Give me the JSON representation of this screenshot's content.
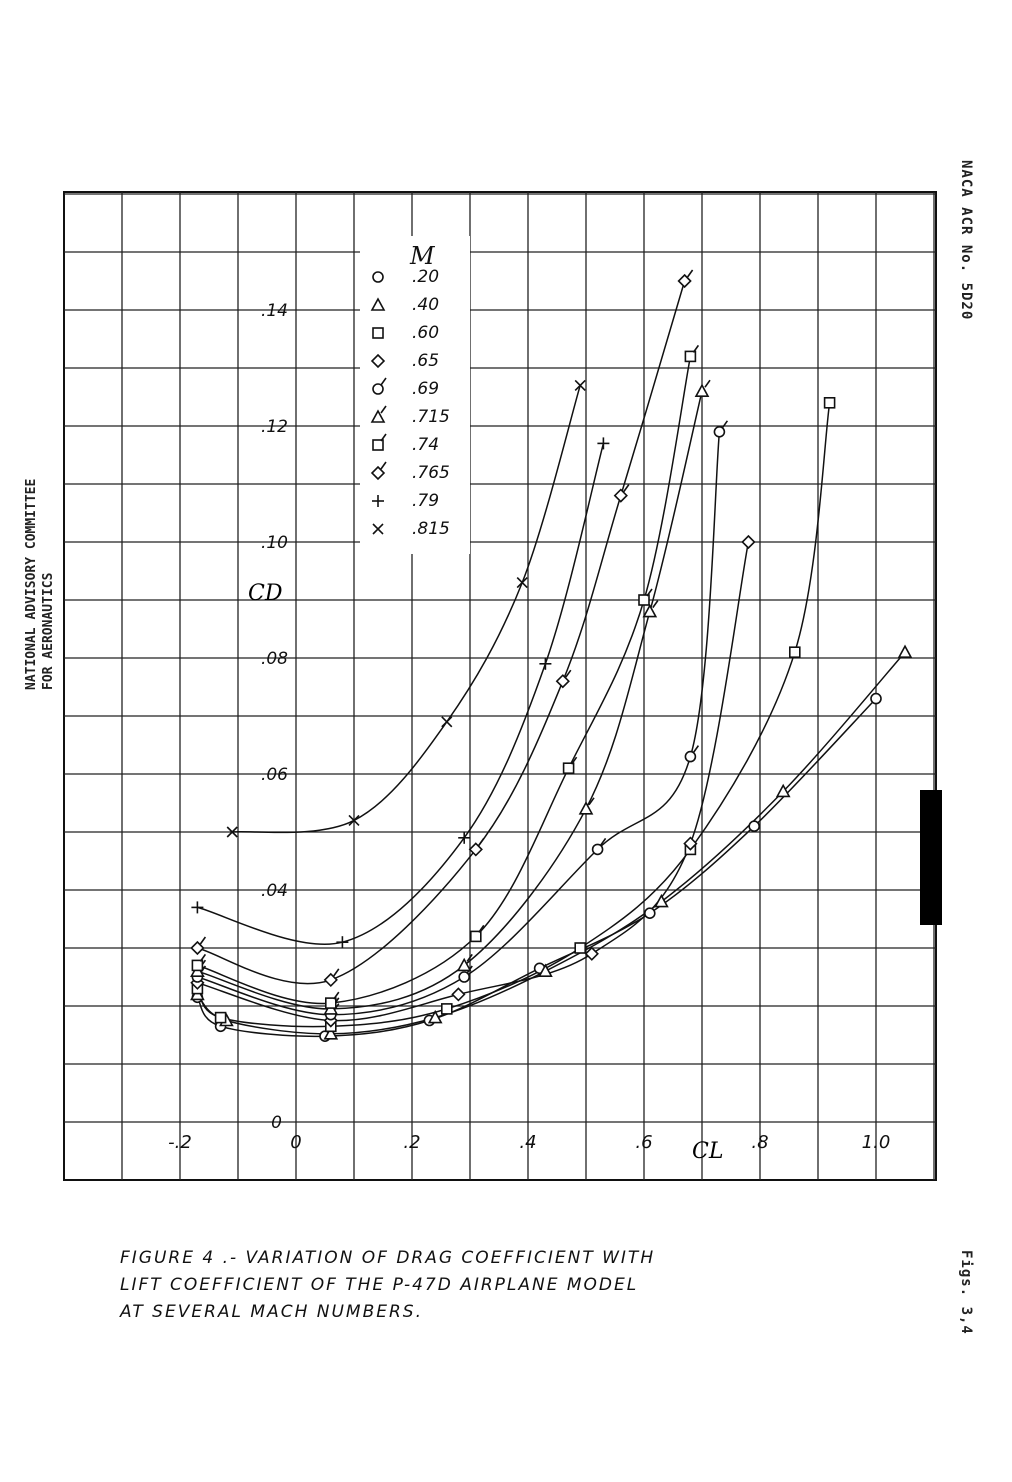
{
  "side_labels": {
    "right_top": "NACA ACR No. 5D20",
    "right_bottom": "Figs. 3,4",
    "left_line1": "NATIONAL ADVISORY COMMITTEE",
    "left_line2": "FOR AERONAUTICS"
  },
  "caption": {
    "line1": "FIGURE 4 .- VARIATION OF DRAG COEFFICIENT WITH",
    "line2": "LIFT COEFFICIENT OF THE P-47D AIRPLANE MODEL",
    "line3": "AT SEVERAL MACH NUMBERS."
  },
  "chart_data": {
    "type": "line",
    "title": "",
    "xlabel": "CL",
    "ylabel": "CD",
    "xlim": [
      -0.4,
      1.12
    ],
    "ylim": [
      -0.006,
      0.16
    ],
    "grid": true,
    "x_ticks": [
      "-.2",
      "0",
      ".2",
      ".4",
      ".6",
      ".8",
      "1.0"
    ],
    "x_tick_values": [
      -0.2,
      0,
      0.2,
      0.4,
      0.6,
      0.8,
      1.0
    ],
    "y_ticks": [
      "0",
      ".04",
      ".06",
      ".08",
      ".10",
      ".12",
      ".14"
    ],
    "y_tick_values": [
      0,
      0.04,
      0.06,
      0.08,
      0.1,
      0.12,
      0.14
    ],
    "legend_title": "M",
    "legend_position": "top-center",
    "series": [
      {
        "name": ".20",
        "marker": "circle",
        "x": [
          -0.17,
          -0.13,
          0.05,
          0.23,
          0.42,
          0.61,
          0.79,
          1.0
        ],
        "y": [
          0.0215,
          0.0165,
          0.0148,
          0.0175,
          0.0265,
          0.036,
          0.051,
          0.073
        ]
      },
      {
        "name": ".40",
        "marker": "triangle",
        "x": [
          -0.17,
          -0.12,
          0.06,
          0.24,
          0.43,
          0.63,
          0.84,
          1.05
        ],
        "y": [
          0.022,
          0.0175,
          0.0152,
          0.018,
          0.026,
          0.038,
          0.057,
          0.081
        ]
      },
      {
        "name": ".60",
        "marker": "square",
        "x": [
          -0.17,
          -0.13,
          0.06,
          0.26,
          0.49,
          0.68,
          0.86,
          0.92
        ],
        "y": [
          0.023,
          0.018,
          0.0165,
          0.0195,
          0.03,
          0.047,
          0.081,
          0.124
        ]
      },
      {
        "name": ".65",
        "marker": "diamond",
        "x": [
          -0.17,
          0.06,
          0.28,
          0.51,
          0.68,
          0.78
        ],
        "y": [
          0.024,
          0.0175,
          0.022,
          0.029,
          0.048,
          0.1
        ]
      },
      {
        "name": ".69",
        "marker": "circle-tick",
        "x": [
          -0.17,
          0.06,
          0.29,
          0.52,
          0.68,
          0.73
        ],
        "y": [
          0.025,
          0.0185,
          0.025,
          0.047,
          0.063,
          0.119
        ]
      },
      {
        "name": ".715",
        "marker": "triangle-tick",
        "x": [
          -0.17,
          0.06,
          0.29,
          0.5,
          0.61,
          0.7
        ],
        "y": [
          0.026,
          0.0195,
          0.027,
          0.054,
          0.088,
          0.126
        ]
      },
      {
        "name": ".74",
        "marker": "square-tick",
        "x": [
          -0.17,
          0.06,
          0.31,
          0.47,
          0.6,
          0.68
        ],
        "y": [
          0.027,
          0.0205,
          0.032,
          0.061,
          0.09,
          0.132
        ]
      },
      {
        "name": ".765",
        "marker": "diamond-tick",
        "x": [
          -0.17,
          0.06,
          0.31,
          0.46,
          0.56,
          0.67
        ],
        "y": [
          0.03,
          0.0245,
          0.047,
          0.076,
          0.108,
          0.145
        ]
      },
      {
        "name": ".79",
        "marker": "plus",
        "x": [
          -0.17,
          0.08,
          0.29,
          0.43,
          0.53
        ],
        "y": [
          0.037,
          0.031,
          0.049,
          0.079,
          0.117
        ]
      },
      {
        "name": ".815",
        "marker": "x",
        "x": [
          -0.11,
          0.1,
          0.26,
          0.39,
          0.49
        ],
        "y": [
          0.05,
          0.052,
          0.069,
          0.093,
          0.127
        ]
      }
    ]
  }
}
